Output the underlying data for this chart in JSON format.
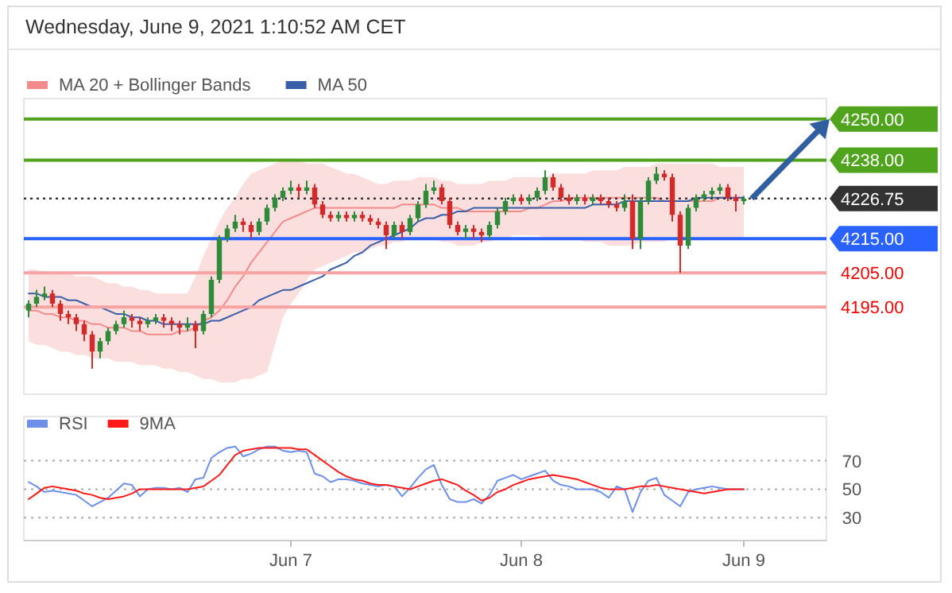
{
  "chart_data": [
    {
      "type": "candlestick",
      "title": "Wednesday, June 9, 2021 1:10:52 AM CET",
      "legend": "top left",
      "tick_labels": false,
      "ylim": [
        4169.5,
        4256
      ],
      "categories": [
        null,
        null,
        null,
        null,
        null,
        null,
        null,
        null,
        null,
        null,
        null,
        null,
        null,
        null,
        null,
        null,
        null,
        null,
        null,
        null,
        null,
        null,
        null,
        null,
        null,
        null,
        null,
        null,
        null,
        null,
        null,
        null,
        null,
        null,
        null,
        null,
        null,
        null,
        null,
        null,
        null,
        null,
        null,
        null,
        null,
        null,
        null,
        null,
        null,
        null,
        null,
        null,
        null,
        null,
        null,
        null,
        null,
        null,
        null,
        null,
        null,
        null,
        null,
        null,
        null,
        null,
        null,
        null,
        null,
        null,
        null,
        null,
        null,
        null,
        null,
        null,
        null,
        null,
        null,
        null,
        null,
        null,
        null,
        null,
        null,
        null,
        null,
        null,
        null,
        null,
        null
      ],
      "ohlc": [
        [
          4194,
          4197,
          4192,
          4196
        ],
        [
          4196,
          4200,
          4195,
          4198
        ],
        [
          4198,
          4201,
          4197,
          4199
        ],
        [
          4199,
          4200,
          4195,
          4196
        ],
        [
          4196,
          4197,
          4191,
          4193
        ],
        [
          4193,
          4194,
          4190,
          4192
        ],
        [
          4192,
          4193,
          4188,
          4190
        ],
        [
          4190,
          4191,
          4185,
          4187
        ],
        [
          4187,
          4188,
          4177,
          4182
        ],
        [
          4182,
          4186,
          4180,
          4185
        ],
        [
          4185,
          4189,
          4184,
          4188
        ],
        [
          4188,
          4191,
          4187,
          4190
        ],
        [
          4190,
          4194,
          4189,
          4192
        ],
        [
          4192,
          4193,
          4189,
          4191
        ],
        [
          4191,
          4192,
          4188,
          4190
        ],
        [
          4190,
          4192,
          4189,
          4191
        ],
        [
          4191,
          4193,
          4190,
          4192
        ],
        [
          4192,
          4193,
          4189,
          4191
        ],
        [
          4191,
          4192,
          4188,
          4190
        ],
        [
          4190,
          4191,
          4187,
          4189
        ],
        [
          4189,
          4192,
          4188,
          4190
        ],
        [
          4190,
          4191,
          4183,
          4188
        ],
        [
          4188,
          4194,
          4187,
          4193
        ],
        [
          4193,
          4204,
          4192,
          4203
        ],
        [
          4203,
          4216,
          4202,
          4215
        ],
        [
          4215,
          4219,
          4214,
          4218
        ],
        [
          4218,
          4222,
          4217,
          4220
        ],
        [
          4220,
          4221,
          4217,
          4219
        ],
        [
          4219,
          4220,
          4215,
          4217
        ],
        [
          4217,
          4221,
          4216,
          4220
        ],
        [
          4220,
          4225,
          4219,
          4224
        ],
        [
          4224,
          4228,
          4223,
          4227
        ],
        [
          4227,
          4230,
          4226,
          4229
        ],
        [
          4229,
          4232,
          4228,
          4230
        ],
        [
          4230,
          4231,
          4227,
          4229
        ],
        [
          4229,
          4232,
          4228,
          4230
        ],
        [
          4230,
          4231,
          4224,
          4225
        ],
        [
          4225,
          4226,
          4221,
          4222
        ],
        [
          4222,
          4223,
          4220,
          4221
        ],
        [
          4221,
          4223,
          4220,
          4222
        ],
        [
          4222,
          4223,
          4220,
          4221
        ],
        [
          4221,
          4223,
          4220,
          4222
        ],
        [
          4222,
          4223,
          4220,
          4221
        ],
        [
          4221,
          4222,
          4219,
          4220
        ],
        [
          4220,
          4221,
          4218,
          4219
        ],
        [
          4219,
          4220,
          4212,
          4216
        ],
        [
          4216,
          4220,
          4215,
          4219
        ],
        [
          4219,
          4220,
          4215,
          4217
        ],
        [
          4217,
          4222,
          4216,
          4221
        ],
        [
          4221,
          4226,
          4220,
          4225
        ],
        [
          4225,
          4231,
          4224,
          4229
        ],
        [
          4229,
          4232,
          4228,
          4230
        ],
        [
          4230,
          4231,
          4225,
          4226
        ],
        [
          4226,
          4227,
          4218,
          4219
        ],
        [
          4219,
          4220,
          4216,
          4217
        ],
        [
          4217,
          4219,
          4215,
          4218
        ],
        [
          4218,
          4219,
          4215,
          4217
        ],
        [
          4217,
          4218,
          4214,
          4216
        ],
        [
          4216,
          4220,
          4215,
          4219
        ],
        [
          4219,
          4224,
          4218,
          4223
        ],
        [
          4223,
          4227,
          4222,
          4226
        ],
        [
          4226,
          4228,
          4225,
          4227
        ],
        [
          4227,
          4228,
          4225,
          4226
        ],
        [
          4226,
          4228,
          4225,
          4227
        ],
        [
          4227,
          4230,
          4226,
          4229
        ],
        [
          4229,
          4235,
          4228,
          4233
        ],
        [
          4233,
          4234,
          4229,
          4230
        ],
        [
          4230,
          4231,
          4226,
          4227
        ],
        [
          4227,
          4228,
          4225,
          4226
        ],
        [
          4226,
          4228,
          4225,
          4227
        ],
        [
          4227,
          4228,
          4225,
          4226
        ],
        [
          4226,
          4228,
          4225,
          4227
        ],
        [
          4227,
          4228,
          4225,
          4226
        ],
        [
          4226,
          4227,
          4224,
          4225
        ],
        [
          4225,
          4226,
          4223,
          4224
        ],
        [
          4224,
          4228,
          4223,
          4226
        ],
        [
          4226,
          4228,
          4212,
          4215
        ],
        [
          4215,
          4227,
          4212,
          4226
        ],
        [
          4226,
          4233,
          4225,
          4232
        ],
        [
          4232,
          4236,
          4231,
          4234
        ],
        [
          4234,
          4235,
          4232,
          4233
        ],
        [
          4233,
          4234,
          4220,
          4222
        ],
        [
          4222,
          4223,
          4205,
          4213
        ],
        [
          4213,
          4225,
          4212,
          4224
        ],
        [
          4224,
          4228,
          4223,
          4227
        ],
        [
          4227,
          4229,
          4226,
          4228
        ],
        [
          4228,
          4230,
          4227,
          4229
        ],
        [
          4229,
          4231,
          4228,
          4230
        ],
        [
          4230,
          4231,
          4226,
          4227
        ],
        [
          4227,
          4228,
          4223,
          4226
        ],
        [
          4226,
          4227.5,
          4225,
          4226.75
        ]
      ],
      "series": [
        {
          "name": "MA 20 + Bollinger Bands",
          "type": "line",
          "color": "#f28b8b",
          "values": [
            4194,
            4194,
            4193,
            4193,
            4192,
            4192,
            4191,
            4191,
            4190,
            4190,
            4189,
            4189,
            4189,
            4188,
            4188,
            4187,
            4187,
            4187,
            4187,
            4188,
            4188,
            4189,
            4191,
            4192,
            4194,
            4197,
            4201,
            4204,
            4208,
            4211,
            4214,
            4217,
            4220,
            4221,
            4222,
            4223,
            4224,
            4224,
            4224,
            4224,
            4224,
            4224,
            4224,
            4224,
            4224,
            4224,
            4224,
            4225,
            4225,
            4225,
            4225,
            4225,
            4224,
            4224,
            4224,
            4223,
            4223,
            4223,
            4223,
            4223,
            4223,
            4223,
            4223,
            4224,
            4224,
            4225,
            4226,
            4226,
            4227,
            4227,
            4227,
            4227,
            4227,
            4227,
            4227,
            4227,
            4227,
            4227,
            4227,
            4227,
            4226,
            4226,
            4226,
            4226,
            4226,
            4226,
            4226,
            4227,
            4227,
            4227,
            4227
          ],
          "upper": [
            4206,
            4206,
            4205,
            4205,
            4205,
            4205,
            4204,
            4204,
            4204,
            4203,
            4202,
            4202,
            4201,
            4201,
            4200,
            4200,
            4199,
            4199,
            4199,
            4199,
            4199,
            4204,
            4210,
            4215,
            4220,
            4224,
            4227,
            4231,
            4234,
            4235,
            4236,
            4237,
            4238,
            4238,
            4238,
            4237,
            4237,
            4237,
            4236,
            4235,
            4234,
            4234,
            4233,
            4232,
            4231,
            4231,
            4232,
            4232,
            4232,
            4233,
            4233,
            4233,
            4232,
            4232,
            4231,
            4231,
            4231,
            4231,
            4232,
            4232,
            4232,
            4233,
            4233,
            4233,
            4233,
            4233,
            4234,
            4234,
            4234,
            4234,
            4234,
            4235,
            4235,
            4235,
            4235,
            4236,
            4236,
            4236,
            4236,
            4237,
            4237,
            4237,
            4237,
            4237,
            4237,
            4237,
            4237,
            4236,
            4236,
            4236,
            4236
          ],
          "lower": [
            4185,
            4184,
            4184,
            4183,
            4182,
            4182,
            4181,
            4181,
            4180,
            4180,
            4180,
            4179,
            4179,
            4179,
            4178,
            4178,
            4178,
            4177,
            4177,
            4176,
            4176,
            4175,
            4174,
            4174,
            4173,
            4173,
            4173,
            4174,
            4174,
            4175,
            4176,
            4184,
            4192,
            4196,
            4199,
            4203,
            4206,
            4207,
            4208,
            4209,
            4210,
            4211,
            4211,
            4212,
            4213,
            4213,
            4214,
            4214,
            4215,
            4215,
            4215,
            4215,
            4214,
            4214,
            4213,
            4213,
            4213,
            4214,
            4214,
            4215,
            4215,
            4216,
            4216,
            4216,
            4216,
            4215,
            4215,
            4215,
            4215,
            4215,
            4214,
            4214,
            4214,
            4213,
            4213,
            4213,
            4213,
            4214,
            4214,
            4214,
            4214,
            4215,
            4215,
            4215,
            4215,
            4215,
            4215,
            4215,
            4215,
            4215,
            4215
          ]
        },
        {
          "name": "MA 50",
          "type": "line",
          "color": "#3b5ea8",
          "values": [
            4199,
            4199,
            4198,
            4198,
            4198,
            4197,
            4197,
            4196,
            4195,
            4195,
            4194,
            4193,
            4193,
            4192,
            4192,
            4191,
            4191,
            4190,
            4190,
            4190,
            4190,
            4190,
            4190,
            4191,
            4191,
            4192,
            4193,
            4194,
            4195,
            4197,
            4198,
            4199,
            4200,
            4200,
            4201,
            4202,
            4203,
            4204,
            4206,
            4207,
            4208,
            4210,
            4211,
            4213,
            4214,
            4215,
            4216,
            4217,
            4218,
            4220,
            4221,
            4221,
            4222,
            4222,
            4223,
            4223,
            4224,
            4224,
            4224,
            4224,
            4224,
            4224,
            4224,
            4224,
            4224,
            4224,
            4224,
            4224,
            4224,
            4224,
            4224,
            4225,
            4225,
            4225,
            4225,
            4226,
            4226,
            4226,
            4226,
            4226,
            4226,
            4226,
            4226,
            4226,
            4227,
            4227,
            4227,
            4227,
            4227,
            4227,
            4227
          ]
        }
      ],
      "ref_lines": [
        {
          "axis": "y",
          "value": 4250,
          "label": "4250.00",
          "color": "#4fa31d"
        },
        {
          "axis": "y",
          "value": 4238,
          "label": "4238.00",
          "color": "#4fa31d"
        },
        {
          "axis": "y",
          "value": 4226.75,
          "label": "4226.75",
          "color": "#333333",
          "line_style": "dotted"
        },
        {
          "axis": "y",
          "value": 4215,
          "label": "4215.00",
          "color": "#2962ff"
        },
        {
          "axis": "y",
          "value": 4205,
          "label": "4205.00",
          "color": "#f5a3a3"
        },
        {
          "axis": "y",
          "value": 4195,
          "label": "4195.00",
          "color": "#f5a3a3"
        }
      ]
    },
    {
      "type": "line",
      "legend": "top left",
      "grid": "y",
      "ylim": [
        14,
        101
      ],
      "yticks": [
        30,
        50,
        70
      ],
      "categories": [
        null,
        null,
        null,
        null,
        null,
        null,
        null,
        null,
        null,
        null,
        null,
        null,
        null,
        null,
        null,
        null,
        null,
        null,
        null,
        null,
        null,
        null,
        null,
        null,
        null,
        null,
        null,
        null,
        null,
        null,
        null,
        null,
        null,
        "Jun 7",
        null,
        null,
        null,
        null,
        null,
        null,
        null,
        null,
        null,
        null,
        null,
        null,
        null,
        null,
        null,
        null,
        null,
        null,
        null,
        null,
        null,
        null,
        null,
        null,
        null,
        null,
        null,
        null,
        "Jun 8",
        null,
        null,
        null,
        null,
        null,
        null,
        null,
        null,
        null,
        null,
        null,
        null,
        null,
        null,
        null,
        null,
        null,
        null,
        null,
        null,
        null,
        null,
        null,
        null,
        null,
        null,
        null,
        "Jun 9"
      ],
      "series": [
        {
          "name": "RSI",
          "color": "#6e8fe8",
          "values": [
            55,
            52,
            48,
            49,
            48,
            47,
            46,
            42,
            38,
            41,
            44,
            49,
            54,
            53,
            45,
            50,
            51,
            51,
            50,
            51,
            48,
            57,
            58,
            72,
            76,
            79,
            80,
            73,
            75,
            78,
            80,
            80,
            77,
            76,
            77,
            76,
            61,
            59,
            55,
            57,
            57,
            56,
            54,
            53,
            52,
            53,
            52,
            45,
            51,
            58,
            64,
            67,
            53,
            43,
            41,
            41,
            43,
            40,
            46,
            56,
            58,
            60,
            57,
            59,
            61,
            63,
            56,
            53,
            52,
            50,
            50,
            50,
            48,
            44,
            52,
            50,
            34,
            48,
            56,
            58,
            46,
            42,
            38,
            48,
            50,
            51,
            52,
            51,
            50,
            50,
            50
          ]
        },
        {
          "name": "9MA",
          "color": "#ff1a1a",
          "values": [
            43,
            47,
            51,
            52,
            51,
            50,
            49,
            47,
            46,
            44,
            43,
            44,
            45,
            47,
            50,
            50,
            50,
            50,
            50,
            50,
            50,
            51,
            52,
            56,
            60,
            67,
            74,
            77,
            78,
            79,
            79,
            79,
            79,
            79,
            78,
            78,
            74,
            70,
            66,
            62,
            59,
            57,
            56,
            54,
            53,
            53,
            52,
            51,
            50,
            52,
            54,
            56,
            57,
            55,
            53,
            49,
            46,
            42,
            44,
            48,
            50,
            53,
            55,
            57,
            58,
            59,
            60,
            59,
            58,
            57,
            55,
            53,
            51,
            50,
            50,
            50,
            51,
            52,
            52,
            53,
            52,
            51,
            50,
            49,
            48,
            47,
            48,
            49,
            50,
            50,
            50
          ]
        }
      ]
    }
  ]
}
